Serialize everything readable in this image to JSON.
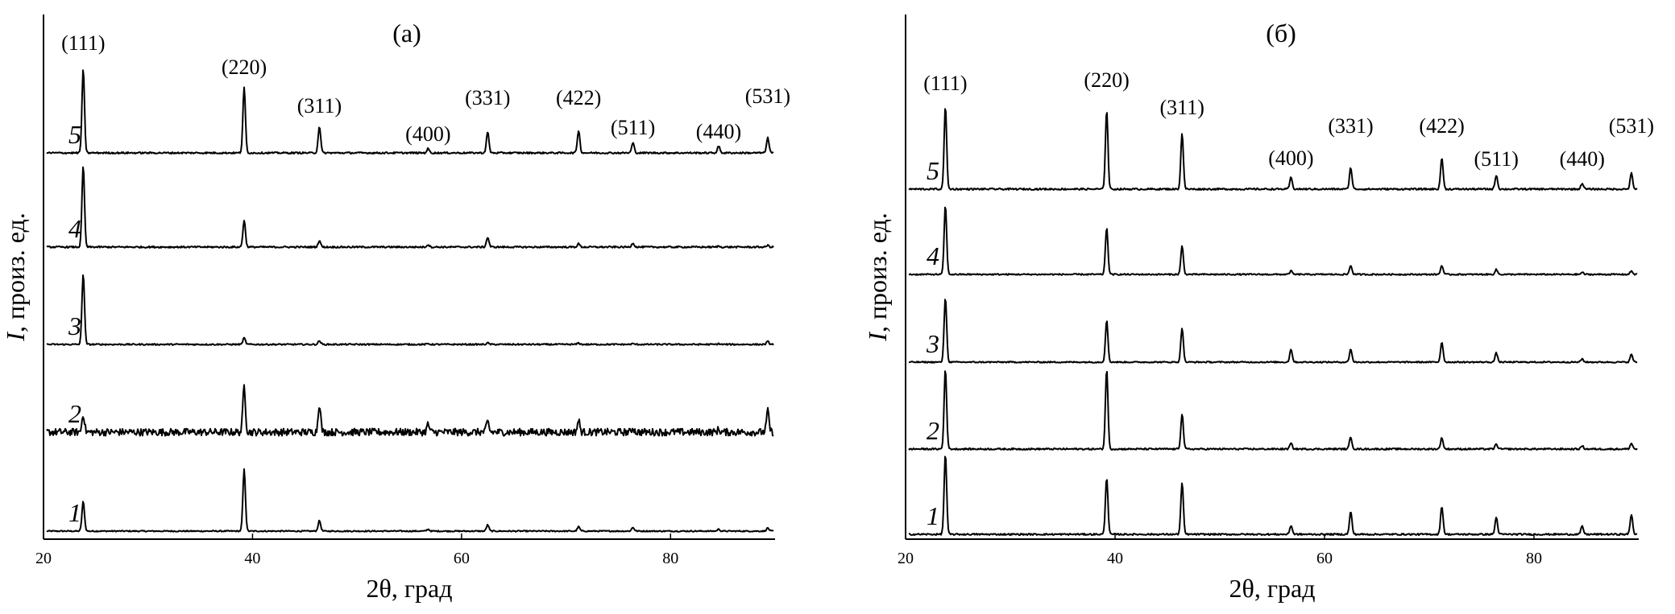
{
  "figure": {
    "panels": [
      {
        "label": "(а)",
        "xlabel": "2θ, град",
        "ylabel_italic": "I",
        "ylabel_rest": ", произ. ед."
      },
      {
        "label": "(б)",
        "xlabel": "2θ, град",
        "ylabel_italic": "I",
        "ylabel_rest": ", произ. ед."
      }
    ]
  },
  "chart_data": [
    {
      "type": "line",
      "title": "(а)",
      "xlabel": "2θ, град",
      "ylabel": "I, произ. ед.",
      "xlim": [
        20,
        90
      ],
      "xticks": [
        20,
        40,
        60,
        80
      ],
      "yticks": [],
      "grid": false,
      "peaks": [
        {
          "hkl": "(111)",
          "x": 23.8
        },
        {
          "hkl": "(220)",
          "x": 39.2
        },
        {
          "hkl": "(311)",
          "x": 46.4
        },
        {
          "hkl": "(400)",
          "x": 56.8
        },
        {
          "hkl": "(331)",
          "x": 62.5
        },
        {
          "hkl": "(422)",
          "x": 71.2
        },
        {
          "hkl": "(511)",
          "x": 76.4
        },
        {
          "hkl": "(440)",
          "x": 84.6
        },
        {
          "hkl": "(531)",
          "x": 89.3
        }
      ],
      "series": [
        {
          "name": "1",
          "peak_heights": [
            0.48,
            1.0,
            0.17,
            0.03,
            0.1,
            0.07,
            0.06,
            0.03,
            0.05
          ],
          "noise": 0.01
        },
        {
          "name": "2",
          "peak_heights": [
            0.35,
            0.9,
            0.55,
            0.15,
            0.2,
            0.22,
            0.08,
            0.05,
            0.4
          ],
          "noise": 0.07
        },
        {
          "name": "3",
          "peak_heights": [
            1.0,
            0.09,
            0.05,
            0.01,
            0.02,
            0.02,
            0.01,
            0.01,
            0.04
          ],
          "noise": 0.01
        },
        {
          "name": "4",
          "peak_heights": [
            1.0,
            0.33,
            0.08,
            0.03,
            0.12,
            0.04,
            0.05,
            0.01,
            0.02
          ],
          "noise": 0.01
        },
        {
          "name": "5",
          "peak_heights": [
            1.0,
            0.78,
            0.32,
            0.05,
            0.25,
            0.27,
            0.12,
            0.08,
            0.18
          ],
          "noise": 0.01
        }
      ]
    },
    {
      "type": "line",
      "title": "(б)",
      "xlabel": "2θ, град",
      "ylabel": "I, произ. ед.",
      "xlim": [
        20,
        90
      ],
      "xticks": [
        20,
        40,
        60,
        80
      ],
      "yticks": [],
      "grid": false,
      "peaks": [
        {
          "hkl": "(111)",
          "x": 23.8
        },
        {
          "hkl": "(220)",
          "x": 39.2
        },
        {
          "hkl": "(311)",
          "x": 46.4
        },
        {
          "hkl": "(400)",
          "x": 56.8
        },
        {
          "hkl": "(331)",
          "x": 62.5
        },
        {
          "hkl": "(422)",
          "x": 71.2
        },
        {
          "hkl": "(511)",
          "x": 76.4
        },
        {
          "hkl": "(440)",
          "x": 84.6
        },
        {
          "hkl": "(531)",
          "x": 89.3
        }
      ],
      "series": [
        {
          "name": "1",
          "peak_heights": [
            1.0,
            0.71,
            0.64,
            0.11,
            0.28,
            0.35,
            0.21,
            0.1,
            0.25
          ],
          "noise": 0.01
        },
        {
          "name": "2",
          "peak_heights": [
            1.0,
            1.0,
            0.44,
            0.07,
            0.15,
            0.14,
            0.06,
            0.04,
            0.07
          ],
          "noise": 0.01
        },
        {
          "name": "3",
          "peak_heights": [
            1.0,
            0.64,
            0.53,
            0.2,
            0.2,
            0.31,
            0.14,
            0.05,
            0.12
          ],
          "noise": 0.01
        },
        {
          "name": "4",
          "peak_heights": [
            1.0,
            0.68,
            0.41,
            0.05,
            0.13,
            0.13,
            0.07,
            0.03,
            0.05
          ],
          "noise": 0.01
        },
        {
          "name": "5",
          "peak_heights": [
            1.0,
            0.96,
            0.68,
            0.14,
            0.26,
            0.38,
            0.17,
            0.07,
            0.19
          ],
          "noise": 0.01
        }
      ]
    }
  ]
}
